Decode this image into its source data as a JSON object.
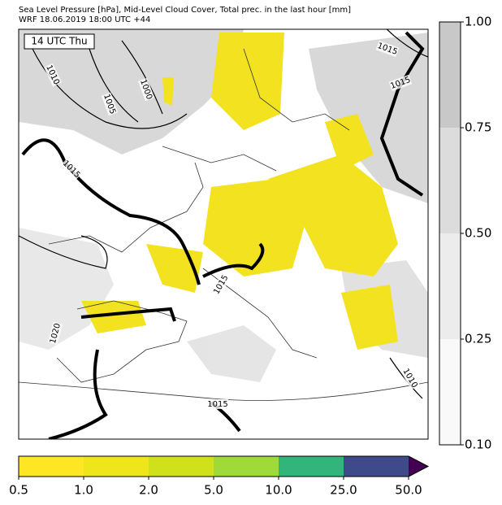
{
  "header": {
    "title": "Sea Level Pressure [hPa], Mid-Level Cloud Cover, Total prec. in the last hour [mm]",
    "subtitle": "WRF 18.06.2019 18:00 UTC +44"
  },
  "map": {
    "time_label": "14 UTC Thu",
    "contour_labels": [
      "1010",
      "1005",
      "1000",
      "1015",
      "1015",
      "1015",
      "1015",
      "1020",
      "1010",
      "1015"
    ]
  },
  "cloud_colorbar": {
    "ticks": [
      "1.00",
      "0.75",
      "0.50",
      "0.25",
      "0.10"
    ]
  },
  "precip_colorbar": {
    "ticks": [
      "0.5",
      "1.0",
      "2.0",
      "5.0",
      "10.0",
      "25.0",
      "50.0"
    ]
  }
}
